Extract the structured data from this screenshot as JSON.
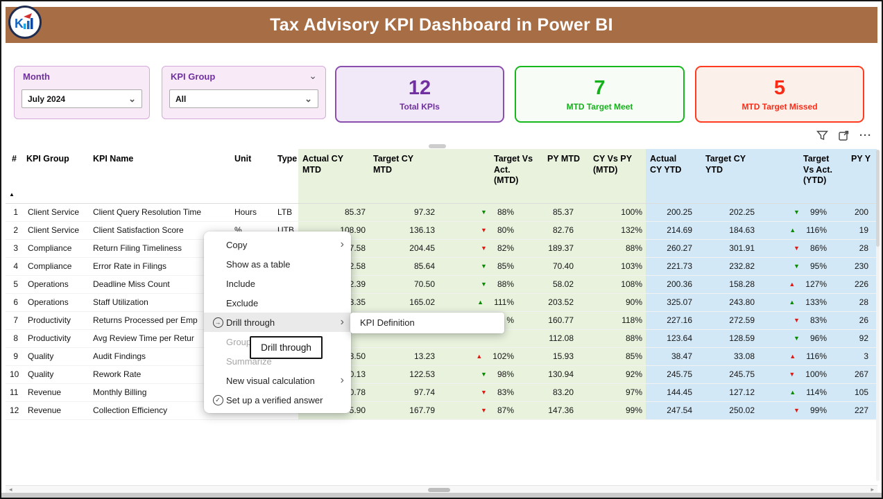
{
  "page": {
    "title": "Tax Advisory KPI Dashboard in Power BI"
  },
  "colors": {
    "titlebar-bg": "#A76D45",
    "accent-purple": "#7030A0",
    "accent-green": "#14B11C",
    "accent-red": "#FB2B16",
    "card-purple-border": "#8A4FAD",
    "card-purple-bg": "#F2E9F8",
    "card-green-border": "#17B81E",
    "card-green-bg": "#F8FCF6",
    "card-red-border": "#FF3A1F",
    "card-red-bg": "#FCF0EB",
    "slicer-bg": "#F8EBF7",
    "slicer-border": "#D5A9DA",
    "table-green": "#E8F2DD",
    "table-blue": "#D3E8F6",
    "tri-green": "#0A8A00",
    "tri-red": "#E01A12",
    "menu-highlight": "#EAEAEA"
  },
  "icons": {
    "chevron-down": "⌄",
    "chevron-right": "›",
    "triangle-up": "▲",
    "triangle-down": "▼",
    "sort-asc": "▲",
    "ellipsis": "···",
    "drill-through": "→",
    "verified-check": "✓"
  },
  "filters": {
    "month": {
      "label": "Month",
      "value": "July 2024"
    },
    "kpi_group": {
      "label": "KPI Group",
      "value": "All"
    }
  },
  "cards": [
    {
      "value": "12",
      "label": "Total KPIs"
    },
    {
      "value": "7",
      "label": "MTD Target Meet"
    },
    {
      "value": "5",
      "label": "MTD Target Missed"
    }
  ],
  "table": {
    "columns": [
      "#",
      "KPI Group",
      "KPI Name",
      "Unit",
      "Type",
      "Actual CY\nMTD",
      "Target CY\nMTD",
      "Target Vs\nAct.\n(MTD)",
      "PY MTD",
      "CY Vs PY\n(MTD)",
      "Actual\nCY YTD",
      "Target CY\nYTD",
      "Target\nVs Act.\n(YTD)",
      "PY Y"
    ],
    "rows": [
      {
        "num": "1",
        "group": "Client Service",
        "name": "Client Query Resolution Time",
        "unit": "Hours",
        "type": "LTB",
        "actual_cy_mtd": "85.37",
        "target_cy_mtd": "97.32",
        "target_vs_act_mtd": {
          "dir": "down",
          "color": "green",
          "pct": "88%"
        },
        "py_mtd": "85.37",
        "cy_vs_py_mtd": "100%",
        "actual_cy_ytd": "200.25",
        "target_cy_ytd": "202.25",
        "target_vs_act_ytd": {
          "dir": "down",
          "color": "green",
          "pct": "99%"
        },
        "py_ytd": "200"
      },
      {
        "num": "2",
        "group": "Client Service",
        "name": "Client Satisfaction Score",
        "unit": "%",
        "type": "UTB",
        "actual_cy_mtd": "108.90",
        "target_cy_mtd": "136.13",
        "target_vs_act_mtd": {
          "dir": "down",
          "color": "red",
          "pct": "80%"
        },
        "py_mtd": "82.76",
        "cy_vs_py_mtd": "132%",
        "actual_cy_ytd": "214.69",
        "target_cy_ytd": "184.63",
        "target_vs_act_ytd": {
          "dir": "up",
          "color": "green",
          "pct": "116%"
        },
        "py_ytd": "19"
      },
      {
        "num": "3",
        "group": "Compliance",
        "name": "Return Filing Timeliness",
        "unit": "",
        "type": "",
        "actual_cy_mtd": "7.58",
        "target_cy_mtd": "204.45",
        "target_vs_act_mtd": {
          "dir": "down",
          "color": "red",
          "pct": "82%"
        },
        "py_mtd": "189.37",
        "cy_vs_py_mtd": "88%",
        "actual_cy_ytd": "260.27",
        "target_cy_ytd": "301.91",
        "target_vs_act_ytd": {
          "dir": "down",
          "color": "red",
          "pct": "86%"
        },
        "py_ytd": "28"
      },
      {
        "num": "4",
        "group": "Compliance",
        "name": "Error Rate in Filings",
        "unit": "",
        "type": "",
        "actual_cy_mtd": "2.58",
        "target_cy_mtd": "85.64",
        "target_vs_act_mtd": {
          "dir": "down",
          "color": "green",
          "pct": "85%"
        },
        "py_mtd": "70.40",
        "cy_vs_py_mtd": "103%",
        "actual_cy_ytd": "221.73",
        "target_cy_ytd": "232.82",
        "target_vs_act_ytd": {
          "dir": "down",
          "color": "green",
          "pct": "95%"
        },
        "py_ytd": "230"
      },
      {
        "num": "5",
        "group": "Operations",
        "name": "Deadline Miss Count",
        "unit": "",
        "type": "",
        "actual_cy_mtd": "2.39",
        "target_cy_mtd": "70.50",
        "target_vs_act_mtd": {
          "dir": "down",
          "color": "green",
          "pct": "88%"
        },
        "py_mtd": "58.02",
        "cy_vs_py_mtd": "108%",
        "actual_cy_ytd": "200.36",
        "target_cy_ytd": "158.28",
        "target_vs_act_ytd": {
          "dir": "up",
          "color": "red",
          "pct": "127%"
        },
        "py_ytd": "226"
      },
      {
        "num": "6",
        "group": "Operations",
        "name": "Staff Utilization",
        "unit": "",
        "type": "",
        "actual_cy_mtd": "3.35",
        "target_cy_mtd": "165.02",
        "target_vs_act_mtd": {
          "dir": "up",
          "color": "green",
          "pct": "111%"
        },
        "py_mtd": "203.52",
        "cy_vs_py_mtd": "90%",
        "actual_cy_ytd": "325.07",
        "target_cy_ytd": "243.80",
        "target_vs_act_ytd": {
          "dir": "up",
          "color": "green",
          "pct": "133%"
        },
        "py_ytd": "28"
      },
      {
        "num": "7",
        "group": "Productivity",
        "name": "Returns Processed per Emp",
        "unit": "",
        "type": "",
        "actual_cy_mtd": "",
        "target_cy_mtd": "",
        "target_vs_act_mtd": {
          "dir": "",
          "color": "",
          "pct": "%"
        },
        "py_mtd": "160.77",
        "cy_vs_py_mtd": "118%",
        "actual_cy_ytd": "227.16",
        "target_cy_ytd": "272.59",
        "target_vs_act_ytd": {
          "dir": "down",
          "color": "red",
          "pct": "83%"
        },
        "py_ytd": "26"
      },
      {
        "num": "8",
        "group": "Productivity",
        "name": "Avg Review Time per Retur",
        "unit": "",
        "type": "",
        "actual_cy_mtd": "",
        "target_cy_mtd": "",
        "target_vs_act_mtd": {
          "dir": "",
          "color": "",
          "pct": ""
        },
        "py_mtd": "112.08",
        "cy_vs_py_mtd": "88%",
        "actual_cy_ytd": "123.64",
        "target_cy_ytd": "128.59",
        "target_vs_act_ytd": {
          "dir": "down",
          "color": "green",
          "pct": "96%"
        },
        "py_ytd": "92"
      },
      {
        "num": "9",
        "group": "Quality",
        "name": "Audit Findings",
        "unit": "",
        "type": "",
        "actual_cy_mtd": "3.50",
        "target_cy_mtd": "13.23",
        "target_vs_act_mtd": {
          "dir": "up",
          "color": "red",
          "pct": "102%"
        },
        "py_mtd": "15.93",
        "cy_vs_py_mtd": "85%",
        "actual_cy_ytd": "38.47",
        "target_cy_ytd": "33.08",
        "target_vs_act_ytd": {
          "dir": "up",
          "color": "red",
          "pct": "116%"
        },
        "py_ytd": "3"
      },
      {
        "num": "10",
        "group": "Quality",
        "name": "Rework Rate",
        "unit": "",
        "type": "",
        "actual_cy_mtd": "0.13",
        "target_cy_mtd": "122.53",
        "target_vs_act_mtd": {
          "dir": "down",
          "color": "green",
          "pct": "98%"
        },
        "py_mtd": "130.94",
        "cy_vs_py_mtd": "92%",
        "actual_cy_ytd": "245.75",
        "target_cy_ytd": "245.75",
        "target_vs_act_ytd": {
          "dir": "down",
          "color": "red",
          "pct": "100%"
        },
        "py_ytd": "267"
      },
      {
        "num": "11",
        "group": "Revenue",
        "name": "Monthly Billing",
        "unit": "",
        "type": "",
        "actual_cy_mtd": "0.78",
        "target_cy_mtd": "97.74",
        "target_vs_act_mtd": {
          "dir": "down",
          "color": "red",
          "pct": "83%"
        },
        "py_mtd": "83.20",
        "cy_vs_py_mtd": "97%",
        "actual_cy_ytd": "144.45",
        "target_cy_ytd": "127.12",
        "target_vs_act_ytd": {
          "dir": "up",
          "color": "green",
          "pct": "114%"
        },
        "py_ytd": "105"
      },
      {
        "num": "12",
        "group": "Revenue",
        "name": "Collection Efficiency",
        "unit": "",
        "type": "",
        "actual_cy_mtd": "5.90",
        "target_cy_mtd": "167.79",
        "target_vs_act_mtd": {
          "dir": "down",
          "color": "red",
          "pct": "87%"
        },
        "py_mtd": "147.36",
        "cy_vs_py_mtd": "99%",
        "actual_cy_ytd": "247.54",
        "target_cy_ytd": "250.02",
        "target_vs_act_ytd": {
          "dir": "down",
          "color": "red",
          "pct": "99%"
        },
        "py_ytd": "227"
      }
    ]
  },
  "context_menu": {
    "items": [
      {
        "label": "Copy",
        "submenu": true
      },
      {
        "label": "Show as a table"
      },
      {
        "label": "Include"
      },
      {
        "label": "Exclude"
      },
      {
        "label": "Drill through",
        "icon": "drill-through",
        "submenu": true,
        "highlighted": true
      },
      {
        "label": "Group",
        "disabled": true
      },
      {
        "label": "Summarize",
        "disabled": true
      },
      {
        "label": "New visual calculation",
        "submenu": true
      },
      {
        "label": "Set up a verified answer",
        "icon": "verified-check"
      }
    ]
  },
  "submenu": {
    "items": [
      {
        "label": "KPI Definition"
      }
    ]
  },
  "tooltip": {
    "text": "Drill through"
  }
}
